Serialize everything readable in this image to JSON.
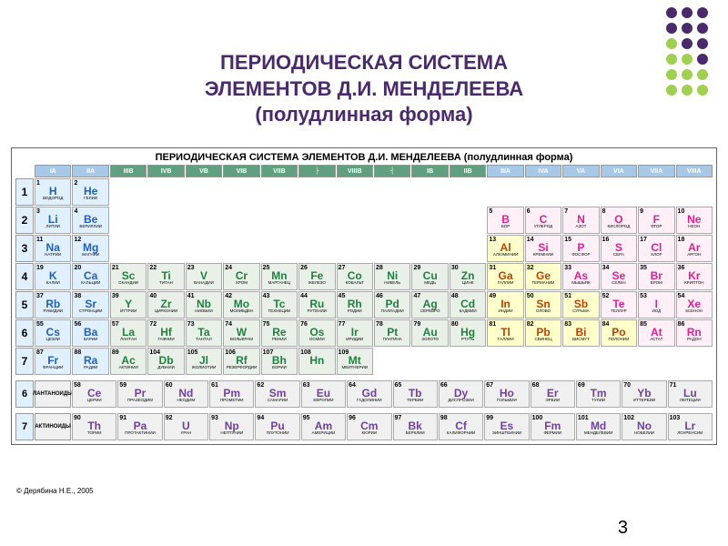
{
  "title_line1": "ПЕРИОДИЧЕСКАЯ СИСТЕМА",
  "title_line2": "ЭЛЕМЕНТОВ Д.И. МЕНДЕЛЕЕВА",
  "title_line3": "(полудлинная форма)",
  "inner_title": "ПЕРИОДИЧЕСКАЯ СИСТЕМА ЭЛЕМЕНТОВ Д.И. МЕНДЕЛЕЕВА   (полудлинная форма)",
  "copyright": "© Дерябина Н.Е., 2005",
  "page_number": "3",
  "dot_colors": [
    "#4a2a6a",
    "#4a2a6a",
    "#4a2a6a",
    "#4a2a6a",
    "#4a2a6a",
    "#4a2a6a",
    "#a0d050",
    "#4a2a6a",
    "#4a2a6a",
    "#a0d050",
    "#a0d050",
    "#4a2a6a",
    "#a0d050",
    "#a0d050",
    "#a0d050",
    "#a0d050",
    "#a0d050",
    "#a0d050"
  ],
  "colors": {
    "s_block": "#e0f0ff",
    "p_nonmetal": "#fff0f8",
    "p_metal": "#ffffcc",
    "d_block": "#e8f0e8",
    "f_block": "#f0f0f0",
    "noble": "#fff0f8",
    "group_header_main": "#a8c8e8",
    "group_header_d": "#60a080",
    "sym_s": "#2060c0",
    "sym_p_nm": "#e02090",
    "sym_p_m": "#c04000",
    "sym_d": "#208040",
    "sym_f": "#7040a0"
  },
  "groups": [
    "IA",
    "IIA",
    "IIIB",
    "IVB",
    "VB",
    "VIB",
    "VIIB",
    "├",
    "VIIIB",
    "┤",
    "IB",
    "IIB",
    "IIIA",
    "IVA",
    "VA",
    "VIA",
    "VIIA",
    "VIIIA"
  ],
  "periods": [
    "1",
    "2",
    "3",
    "4",
    "5",
    "6",
    "7"
  ],
  "elements": [
    {
      "n": "1",
      "s": "H",
      "nm": "ВОДОРОД",
      "p": 1,
      "g": 1,
      "c": "s"
    },
    {
      "n": "2",
      "s": "He",
      "nm": "ГЕЛИЙ",
      "p": 1,
      "g": 2,
      "c": "s"
    },
    {
      "n": "3",
      "s": "Li",
      "nm": "ЛИТИЙ",
      "p": 2,
      "g": 1,
      "c": "s"
    },
    {
      "n": "4",
      "s": "Be",
      "nm": "БЕРИЛЛИЙ",
      "p": 2,
      "g": 2,
      "c": "s"
    },
    {
      "n": "5",
      "s": "B",
      "nm": "БОР",
      "p": 2,
      "g": 13,
      "c": "pn"
    },
    {
      "n": "6",
      "s": "C",
      "nm": "УГЛЕРОД",
      "p": 2,
      "g": 14,
      "c": "pn"
    },
    {
      "n": "7",
      "s": "N",
      "nm": "АЗОТ",
      "p": 2,
      "g": 15,
      "c": "pn"
    },
    {
      "n": "8",
      "s": "O",
      "nm": "КИСЛОРОД",
      "p": 2,
      "g": 16,
      "c": "pn"
    },
    {
      "n": "9",
      "s": "F",
      "nm": "ФТОР",
      "p": 2,
      "g": 17,
      "c": "pn"
    },
    {
      "n": "10",
      "s": "Ne",
      "nm": "НЕОН",
      "p": 2,
      "g": 18,
      "c": "pn"
    },
    {
      "n": "11",
      "s": "Na",
      "nm": "НАТРИЙ",
      "p": 3,
      "g": 1,
      "c": "s"
    },
    {
      "n": "12",
      "s": "Mg",
      "nm": "МАГНИЙ",
      "p": 3,
      "g": 2,
      "c": "s"
    },
    {
      "n": "13",
      "s": "Al",
      "nm": "АЛЮМИНИЙ",
      "p": 3,
      "g": 13,
      "c": "pm"
    },
    {
      "n": "14",
      "s": "Si",
      "nm": "КРЕМНИЙ",
      "p": 3,
      "g": 14,
      "c": "pn"
    },
    {
      "n": "15",
      "s": "P",
      "nm": "ФОСФОР",
      "p": 3,
      "g": 15,
      "c": "pn"
    },
    {
      "n": "16",
      "s": "S",
      "nm": "СЕРА",
      "p": 3,
      "g": 16,
      "c": "pn"
    },
    {
      "n": "17",
      "s": "Cl",
      "nm": "ХЛОР",
      "p": 3,
      "g": 17,
      "c": "pn"
    },
    {
      "n": "18",
      "s": "Ar",
      "nm": "АРГОН",
      "p": 3,
      "g": 18,
      "c": "pn"
    },
    {
      "n": "19",
      "s": "K",
      "nm": "КАЛИЙ",
      "p": 4,
      "g": 1,
      "c": "s"
    },
    {
      "n": "20",
      "s": "Ca",
      "nm": "КАЛЬЦИЙ",
      "p": 4,
      "g": 2,
      "c": "s"
    },
    {
      "n": "21",
      "s": "Sc",
      "nm": "СКАНДИЙ",
      "p": 4,
      "g": 3,
      "c": "d"
    },
    {
      "n": "22",
      "s": "Ti",
      "nm": "ТИТАН",
      "p": 4,
      "g": 4,
      "c": "d"
    },
    {
      "n": "23",
      "s": "V",
      "nm": "ВАНАДИЙ",
      "p": 4,
      "g": 5,
      "c": "d"
    },
    {
      "n": "24",
      "s": "Cr",
      "nm": "ХРОМ",
      "p": 4,
      "g": 6,
      "c": "d"
    },
    {
      "n": "25",
      "s": "Mn",
      "nm": "МАРГАНЕЦ",
      "p": 4,
      "g": 7,
      "c": "d"
    },
    {
      "n": "26",
      "s": "Fe",
      "nm": "ЖЕЛЕЗО",
      "p": 4,
      "g": 8,
      "c": "d"
    },
    {
      "n": "27",
      "s": "Co",
      "nm": "КОБАЛЬТ",
      "p": 4,
      "g": 9,
      "c": "d"
    },
    {
      "n": "28",
      "s": "Ni",
      "nm": "НИКЕЛЬ",
      "p": 4,
      "g": 10,
      "c": "d"
    },
    {
      "n": "29",
      "s": "Cu",
      "nm": "МЕДЬ",
      "p": 4,
      "g": 11,
      "c": "d"
    },
    {
      "n": "30",
      "s": "Zn",
      "nm": "ЦИНК",
      "p": 4,
      "g": 12,
      "c": "d"
    },
    {
      "n": "31",
      "s": "Ga",
      "nm": "ГАЛЛИЙ",
      "p": 4,
      "g": 13,
      "c": "pm"
    },
    {
      "n": "32",
      "s": "Ge",
      "nm": "ГЕРМАНИЙ",
      "p": 4,
      "g": 14,
      "c": "pm"
    },
    {
      "n": "33",
      "s": "As",
      "nm": "МЫШЬЯК",
      "p": 4,
      "g": 15,
      "c": "pn"
    },
    {
      "n": "34",
      "s": "Se",
      "nm": "СЕЛЕН",
      "p": 4,
      "g": 16,
      "c": "pn"
    },
    {
      "n": "35",
      "s": "Br",
      "nm": "БРОМ",
      "p": 4,
      "g": 17,
      "c": "pn"
    },
    {
      "n": "36",
      "s": "Kr",
      "nm": "КРИПТОН",
      "p": 4,
      "g": 18,
      "c": "pn"
    },
    {
      "n": "37",
      "s": "Rb",
      "nm": "РУБИДИЙ",
      "p": 5,
      "g": 1,
      "c": "s"
    },
    {
      "n": "38",
      "s": "Sr",
      "nm": "СТРОНЦИЙ",
      "p": 5,
      "g": 2,
      "c": "s"
    },
    {
      "n": "39",
      "s": "Y",
      "nm": "ИТТРИЙ",
      "p": 5,
      "g": 3,
      "c": "d"
    },
    {
      "n": "40",
      "s": "Zr",
      "nm": "ЦИРКОНИЙ",
      "p": 5,
      "g": 4,
      "c": "d"
    },
    {
      "n": "41",
      "s": "Nb",
      "nm": "НИОБИЙ",
      "p": 5,
      "g": 5,
      "c": "d"
    },
    {
      "n": "42",
      "s": "Mo",
      "nm": "МОЛИБДЕН",
      "p": 5,
      "g": 6,
      "c": "d"
    },
    {
      "n": "43",
      "s": "Tc",
      "nm": "ТЕХНЕЦИЙ",
      "p": 5,
      "g": 7,
      "c": "d"
    },
    {
      "n": "44",
      "s": "Ru",
      "nm": "РУТЕНИЙ",
      "p": 5,
      "g": 8,
      "c": "d"
    },
    {
      "n": "45",
      "s": "Rh",
      "nm": "РОДИЙ",
      "p": 5,
      "g": 9,
      "c": "d"
    },
    {
      "n": "46",
      "s": "Pd",
      "nm": "ПАЛЛАДИЙ",
      "p": 5,
      "g": 10,
      "c": "d"
    },
    {
      "n": "47",
      "s": "Ag",
      "nm": "СЕРЕБРО",
      "p": 5,
      "g": 11,
      "c": "d"
    },
    {
      "n": "48",
      "s": "Cd",
      "nm": "КАДМИЙ",
      "p": 5,
      "g": 12,
      "c": "d"
    },
    {
      "n": "49",
      "s": "In",
      "nm": "ИНДИЙ",
      "p": 5,
      "g": 13,
      "c": "pm"
    },
    {
      "n": "50",
      "s": "Sn",
      "nm": "ОЛОВО",
      "p": 5,
      "g": 14,
      "c": "pm"
    },
    {
      "n": "51",
      "s": "Sb",
      "nm": "СУРЬМА",
      "p": 5,
      "g": 15,
      "c": "pm"
    },
    {
      "n": "52",
      "s": "Te",
      "nm": "ТЕЛЛУР",
      "p": 5,
      "g": 16,
      "c": "pn"
    },
    {
      "n": "53",
      "s": "I",
      "nm": "ИОД",
      "p": 5,
      "g": 17,
      "c": "pn"
    },
    {
      "n": "54",
      "s": "Xe",
      "nm": "КСЕНОН",
      "p": 5,
      "g": 18,
      "c": "pn"
    },
    {
      "n": "55",
      "s": "Cs",
      "nm": "ЦЕЗИЙ",
      "p": 6,
      "g": 1,
      "c": "s"
    },
    {
      "n": "56",
      "s": "Ba",
      "nm": "БАРИЙ",
      "p": 6,
      "g": 2,
      "c": "s"
    },
    {
      "n": "57",
      "s": "La",
      "nm": "ЛАНТАН",
      "p": 6,
      "g": 3,
      "c": "d"
    },
    {
      "n": "72",
      "s": "Hf",
      "nm": "ГАФНИЙ",
      "p": 6,
      "g": 4,
      "c": "d"
    },
    {
      "n": "73",
      "s": "Ta",
      "nm": "ТАНТАЛ",
      "p": 6,
      "g": 5,
      "c": "d"
    },
    {
      "n": "74",
      "s": "W",
      "nm": "ВОЛЬФРАМ",
      "p": 6,
      "g": 6,
      "c": "d"
    },
    {
      "n": "75",
      "s": "Re",
      "nm": "РЕНИЙ",
      "p": 6,
      "g": 7,
      "c": "d"
    },
    {
      "n": "76",
      "s": "Os",
      "nm": "ОСМИЙ",
      "p": 6,
      "g": 8,
      "c": "d"
    },
    {
      "n": "77",
      "s": "Ir",
      "nm": "ИРИДИЙ",
      "p": 6,
      "g": 9,
      "c": "d"
    },
    {
      "n": "78",
      "s": "Pt",
      "nm": "ПЛАТИНА",
      "p": 6,
      "g": 10,
      "c": "d"
    },
    {
      "n": "79",
      "s": "Au",
      "nm": "ЗОЛОТО",
      "p": 6,
      "g": 11,
      "c": "d"
    },
    {
      "n": "80",
      "s": "Hg",
      "nm": "РТУТЬ",
      "p": 6,
      "g": 12,
      "c": "d"
    },
    {
      "n": "81",
      "s": "Tl",
      "nm": "ТАЛЛИЙ",
      "p": 6,
      "g": 13,
      "c": "pm"
    },
    {
      "n": "82",
      "s": "Pb",
      "nm": "СВИНЕЦ",
      "p": 6,
      "g": 14,
      "c": "pm"
    },
    {
      "n": "83",
      "s": "Bi",
      "nm": "ВИСМУТ",
      "p": 6,
      "g": 15,
      "c": "pm"
    },
    {
      "n": "84",
      "s": "Po",
      "nm": "ПОЛОНИЙ",
      "p": 6,
      "g": 16,
      "c": "pm"
    },
    {
      "n": "85",
      "s": "At",
      "nm": "АСТАТ",
      "p": 6,
      "g": 17,
      "c": "pn"
    },
    {
      "n": "86",
      "s": "Rn",
      "nm": "РАДОН",
      "p": 6,
      "g": 18,
      "c": "pn"
    },
    {
      "n": "87",
      "s": "Fr",
      "nm": "ФРАНЦИЙ",
      "p": 7,
      "g": 1,
      "c": "s"
    },
    {
      "n": "88",
      "s": "Ra",
      "nm": "РАДИЙ",
      "p": 7,
      "g": 2,
      "c": "s"
    },
    {
      "n": "89",
      "s": "Ac",
      "nm": "АКТИНИЙ",
      "p": 7,
      "g": 3,
      "c": "d"
    },
    {
      "n": "104",
      "s": "Db",
      "nm": "ДУБНИЙ",
      "p": 7,
      "g": 4,
      "c": "d"
    },
    {
      "n": "105",
      "s": "Jl",
      "nm": "ЖОЛИОТИЙ",
      "p": 7,
      "g": 5,
      "c": "d"
    },
    {
      "n": "106",
      "s": "Rf",
      "nm": "РЕЗЕРФОРДИЙ",
      "p": 7,
      "g": 6,
      "c": "d"
    },
    {
      "n": "107",
      "s": "Bh",
      "nm": "БОРИЙ",
      "p": 7,
      "g": 7,
      "c": "d"
    },
    {
      "n": "108",
      "s": "Hn",
      "nm": "",
      "p": 7,
      "g": 8,
      "c": "d"
    },
    {
      "n": "109",
      "s": "Mt",
      "nm": "МЕЙТНЕРИЙ",
      "p": 7,
      "g": 9,
      "c": "d"
    }
  ],
  "lanth_label": "ЛАНТАНОИДЫ",
  "act_label": "АКТИНОИДЫ",
  "lanthanides": [
    {
      "n": "58",
      "s": "Ce",
      "nm": "ЦЕРИЙ"
    },
    {
      "n": "59",
      "s": "Pr",
      "nm": "ПРАЗЕОДИМ"
    },
    {
      "n": "60",
      "s": "Nd",
      "nm": "НЕОДИМ"
    },
    {
      "n": "61",
      "s": "Pm",
      "nm": "ПРОМЕТИЙ"
    },
    {
      "n": "62",
      "s": "Sm",
      "nm": "САМАРИЙ"
    },
    {
      "n": "63",
      "s": "Eu",
      "nm": "ЕВРОПИЙ"
    },
    {
      "n": "64",
      "s": "Gd",
      "nm": "ГАДОЛИНИЙ"
    },
    {
      "n": "65",
      "s": "Tb",
      "nm": "ТЕРБИЙ"
    },
    {
      "n": "66",
      "s": "Dy",
      "nm": "ДИСПРОЗИЙ"
    },
    {
      "n": "67",
      "s": "Ho",
      "nm": "ГОЛЬМИЙ"
    },
    {
      "n": "68",
      "s": "Er",
      "nm": "ЭРБИЙ"
    },
    {
      "n": "69",
      "s": "Tm",
      "nm": "ТУЛИЙ"
    },
    {
      "n": "70",
      "s": "Yb",
      "nm": "ИТТЕРБИЙ"
    },
    {
      "n": "71",
      "s": "Lu",
      "nm": "ЛЮТЕЦИЙ"
    }
  ],
  "actinides": [
    {
      "n": "90",
      "s": "Th",
      "nm": "ТОРИЙ"
    },
    {
      "n": "91",
      "s": "Pa",
      "nm": "ПРОТАКТИНИЙ"
    },
    {
      "n": "92",
      "s": "U",
      "nm": "УРАН"
    },
    {
      "n": "93",
      "s": "Np",
      "nm": "НЕПТУНИЙ"
    },
    {
      "n": "94",
      "s": "Pu",
      "nm": "ПЛУТОНИЙ"
    },
    {
      "n": "95",
      "s": "Am",
      "nm": "АМЕРИЦИЙ"
    },
    {
      "n": "96",
      "s": "Cm",
      "nm": "КЮРИЙ"
    },
    {
      "n": "97",
      "s": "Bk",
      "nm": "БЕРКЛИЙ"
    },
    {
      "n": "98",
      "s": "Cf",
      "nm": "КАЛИФОРНИЙ"
    },
    {
      "n": "99",
      "s": "Es",
      "nm": "ЭЙНШТЕЙНИЙ"
    },
    {
      "n": "100",
      "s": "Fm",
      "nm": "ФЕРМИЙ"
    },
    {
      "n": "101",
      "s": "Md",
      "nm": "МЕНДЕЛЕВИЙ"
    },
    {
      "n": "102",
      "s": "No",
      "nm": "НОБЕЛИЙ"
    },
    {
      "n": "103",
      "s": "Lr",
      "nm": "ЛОУРЕНСИЙ"
    }
  ]
}
